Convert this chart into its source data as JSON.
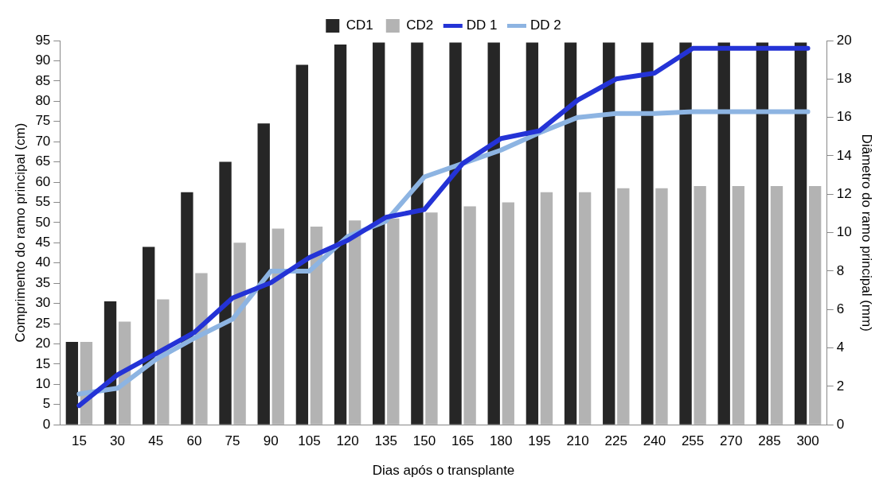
{
  "chart_data": {
    "type": "bar",
    "xlabel": "Dias após o transplante",
    "ylabel": "Comprimento do ramo principal (cm)",
    "y2label": "Diâmetro do ramo principal (mm)",
    "categories": [
      "15",
      "30",
      "45",
      "60",
      "75",
      "90",
      "105",
      "120",
      "135",
      "150",
      "165",
      "180",
      "195",
      "210",
      "225",
      "240",
      "255",
      "270",
      "285",
      "300"
    ],
    "series": [
      {
        "name": "CD1",
        "color": "#262626",
        "values": [
          20.5,
          30.5,
          44,
          57.5,
          65,
          74.5,
          89,
          94,
          94.5,
          94.5,
          94.5,
          94.5,
          94.5,
          94.5,
          94.5,
          94.5,
          94.5,
          94.5,
          94.5,
          94.5
        ]
      },
      {
        "name": "CD2",
        "color": "#b3b3b3",
        "values": [
          20.5,
          25.5,
          31,
          37.5,
          45,
          48.5,
          49,
          50.5,
          51,
          52.5,
          54,
          55,
          57.5,
          57.5,
          58.5,
          58.5,
          59,
          59,
          59,
          59
        ]
      },
      {
        "name": "DD 1",
        "type": "line",
        "axis": "y2",
        "color": "#2433d6",
        "values": [
          1,
          2.6,
          3.7,
          4.8,
          6.6,
          7.4,
          8.7,
          9.6,
          10.8,
          11.2,
          13.6,
          14.9,
          15.3,
          16.9,
          18,
          18.3,
          19.6,
          19.6,
          19.6,
          19.6
        ]
      },
      {
        "name": "DD 2",
        "type": "line",
        "axis": "y2",
        "color": "#8db4e2",
        "values": [
          1.6,
          1.9,
          3.4,
          4.5,
          5.5,
          8,
          8,
          9.8,
          10.6,
          12.9,
          13.6,
          14.3,
          15.2,
          16,
          16.2,
          16.2,
          16.3,
          16.3,
          16.3,
          16.3
        ]
      }
    ],
    "ylim": [
      0,
      95
    ],
    "yticks": [
      0,
      5,
      10,
      15,
      20,
      25,
      30,
      35,
      40,
      45,
      50,
      55,
      60,
      65,
      70,
      75,
      80,
      85,
      90,
      95
    ],
    "y2lim": [
      0,
      20
    ],
    "y2ticks": [
      0,
      2,
      4,
      6,
      8,
      10,
      12,
      14,
      16,
      18,
      20
    ],
    "grid": false,
    "legend": "top",
    "marker": "none",
    "line_style": "solid"
  }
}
